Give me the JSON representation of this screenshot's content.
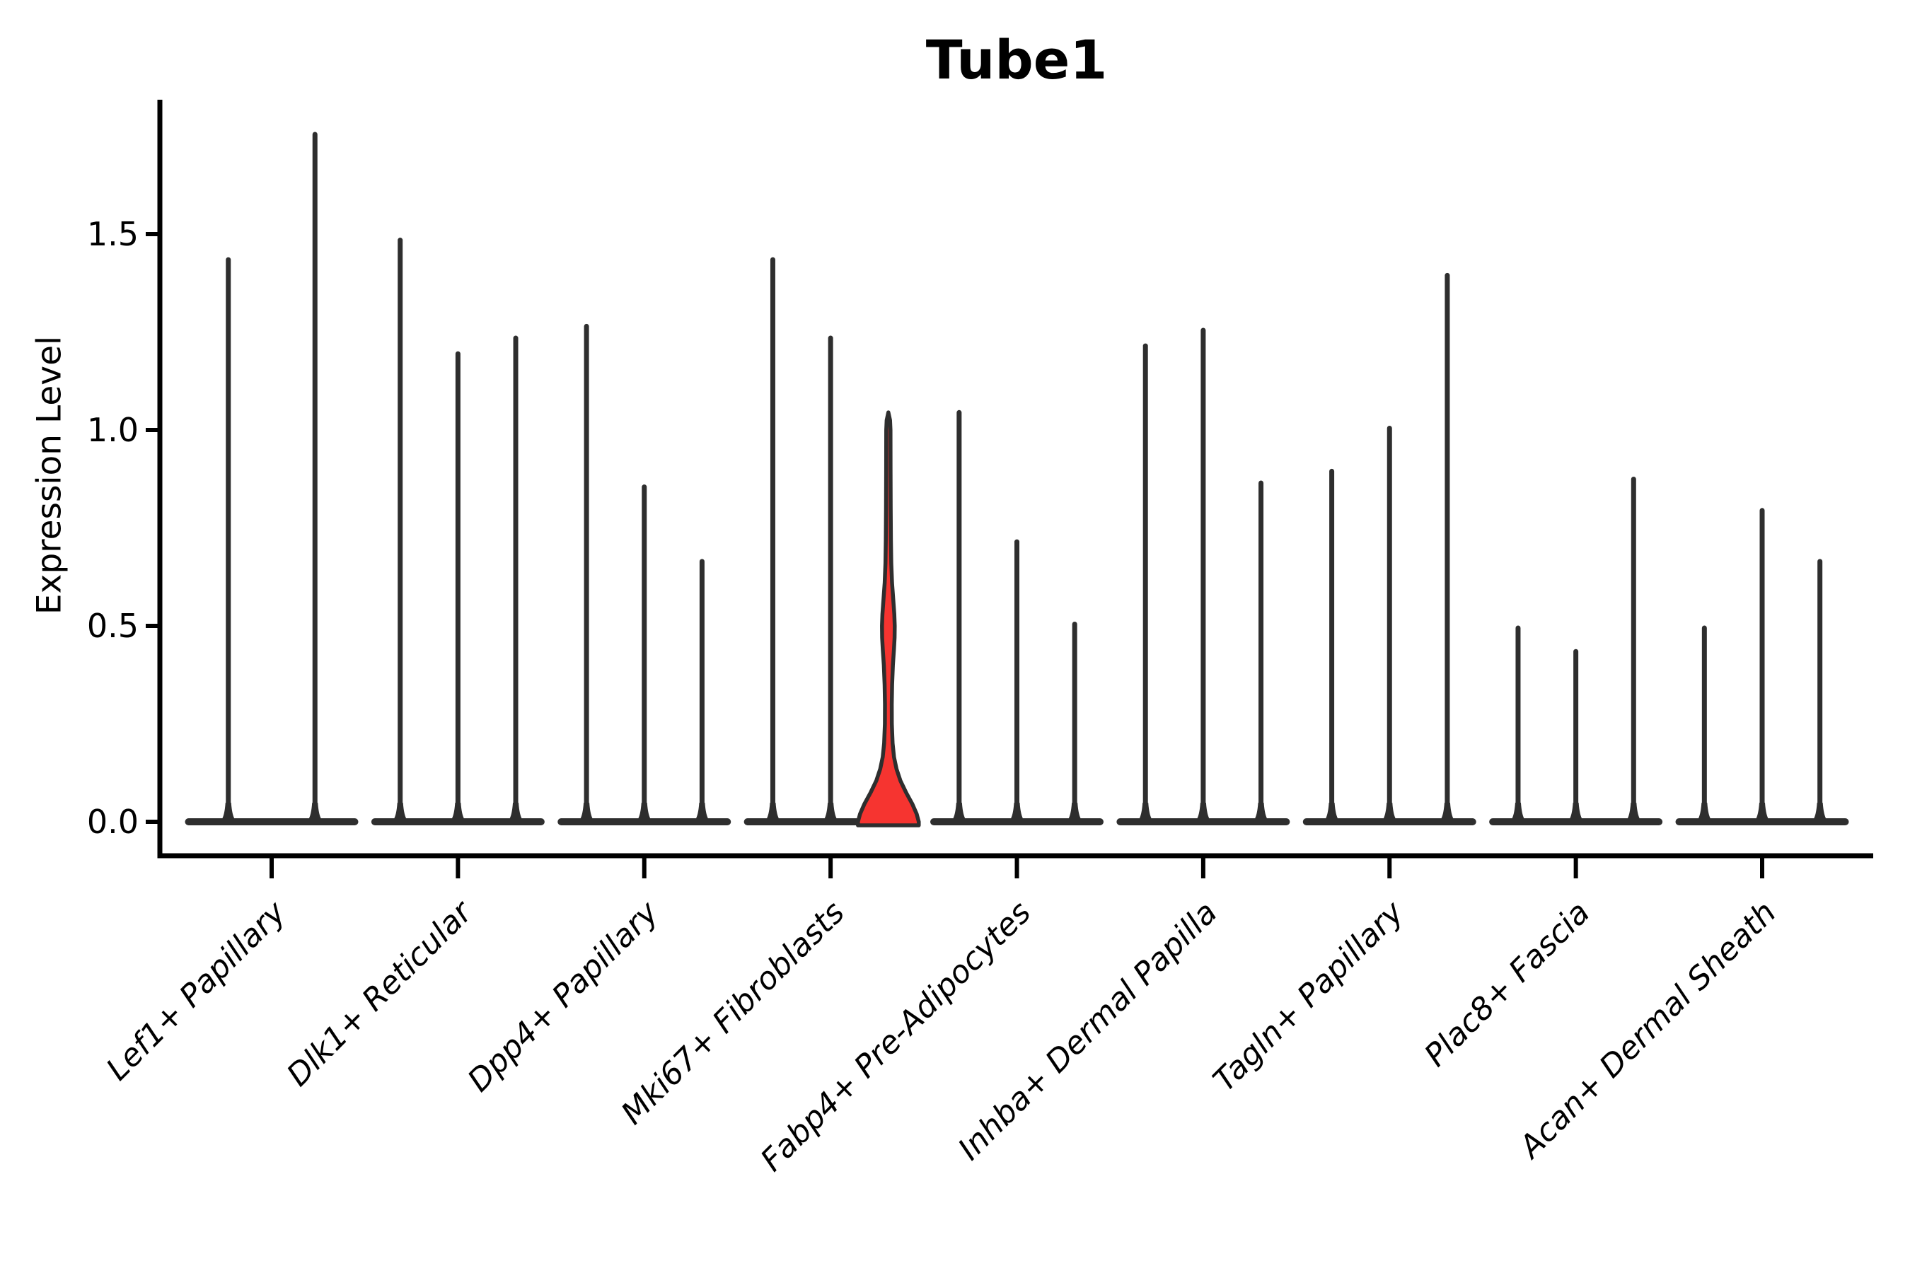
{
  "chart_data": {
    "type": "violin",
    "title": "Tube1",
    "xlabel": "",
    "ylabel": "Expression Level",
    "ytick_labels": [
      "0.0",
      "0.5",
      "1.0",
      "1.5"
    ],
    "ylim": [
      -0.09,
      1.84
    ],
    "grid": false,
    "legend": "none",
    "categories": [
      "Lef1+ Papillary",
      "Dlk1+ Reticular",
      "Dpp4+ Papillary",
      "Mki67+ Fibroblasts",
      "Fabp4+ Pre-Adipocytes",
      "Inhba+ Dermal Papilla",
      "Tagln+ Papillary",
      "Plac8+ Fascia",
      "Acan+ Dermal Sheath"
    ],
    "groups": [
      {
        "category": "Lef1+ Papillary",
        "violin_maxima": [
          1.44,
          1.76
        ],
        "highlighted": null
      },
      {
        "category": "Dlk1+ Reticular",
        "violin_maxima": [
          1.49,
          1.2,
          1.24
        ],
        "highlighted": null
      },
      {
        "category": "Dpp4+ Papillary",
        "violin_maxima": [
          1.27,
          0.86,
          0.67
        ],
        "highlighted": null
      },
      {
        "category": "Mki67+ Fibroblasts",
        "violin_maxima": [
          1.44,
          1.24,
          1.03
        ],
        "highlighted": 2
      },
      {
        "category": "Fabp4+ Pre-Adipocytes",
        "violin_maxima": [
          1.05,
          0.72,
          0.51
        ],
        "highlighted": null
      },
      {
        "category": "Inhba+ Dermal Papilla",
        "violin_maxima": [
          1.22,
          1.26,
          0.87
        ],
        "highlighted": null
      },
      {
        "category": "Tagln+ Papillary",
        "violin_maxima": [
          0.9,
          1.01,
          1.4
        ],
        "highlighted": null
      },
      {
        "category": "Plac8+ Fascia",
        "violin_maxima": [
          0.5,
          0.44,
          0.88
        ],
        "highlighted": null
      },
      {
        "category": "Acan+ Dermal Sheath",
        "violin_maxima": [
          0.5,
          0.8,
          0.67
        ],
        "highlighted": null
      }
    ],
    "highlight": {
      "category": "Mki67+ Fibroblasts",
      "violin_index": 2,
      "max": 1.03,
      "bulge_range": [
        0.39,
        0.59
      ],
      "bulge_peak": 0.49,
      "fill": "#f63430"
    },
    "colors": {
      "violin_line": "#2e2e2e",
      "axis": "#000000",
      "text": "#000000",
      "highlight_fill": "#f63430",
      "background": "#ffffff"
    }
  }
}
